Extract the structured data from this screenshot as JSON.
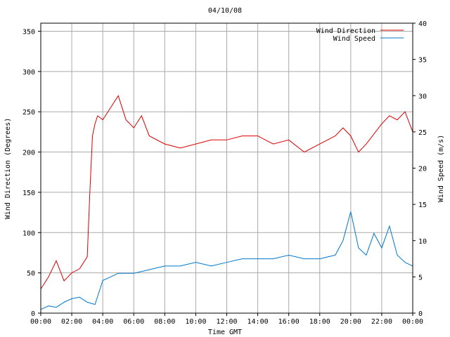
{
  "chart_data": {
    "type": "line",
    "title": "04/10/08",
    "xlabel": "Time GMT",
    "ylabel_left": "Wind Direction (Degrees)",
    "ylabel_right": "Wind Speed (m/s)",
    "x_ticks": [
      "00:00",
      "02:00",
      "04:00",
      "06:00",
      "08:00",
      "10:00",
      "12:00",
      "14:00",
      "16:00",
      "18:00",
      "20:00",
      "22:00",
      "00:00"
    ],
    "y_left_ticks": [
      "0",
      "50",
      "100",
      "150",
      "200",
      "250",
      "300",
      "350"
    ],
    "y_right_ticks": [
      "0",
      "5",
      "10",
      "15",
      "20",
      "25",
      "30",
      "35",
      "40"
    ],
    "ylim_left": [
      0,
      360
    ],
    "ylim_right": [
      0,
      40
    ],
    "xlim_hours": [
      0,
      24
    ],
    "grid": true,
    "legend_position": "top-right",
    "series": [
      {
        "name": "Wind Direction",
        "color": "#dd0000",
        "axis": "left",
        "x": [
          "00:00",
          "00:30",
          "01:00",
          "01:30",
          "02:00",
          "02:30",
          "03:00",
          "03:10",
          "03:20",
          "03:30",
          "03:40",
          "04:00",
          "04:30",
          "05:00",
          "05:30",
          "06:00",
          "06:30",
          "07:00",
          "08:00",
          "09:00",
          "10:00",
          "11:00",
          "12:00",
          "13:00",
          "14:00",
          "15:00",
          "16:00",
          "17:00",
          "18:00",
          "19:00",
          "19:30",
          "20:00",
          "20:30",
          "21:00",
          "22:00",
          "22:30",
          "23:00",
          "23:30",
          "00:00"
        ],
        "values": [
          30,
          45,
          65,
          40,
          50,
          55,
          70,
          150,
          220,
          235,
          245,
          240,
          255,
          270,
          240,
          230,
          245,
          220,
          210,
          205,
          210,
          215,
          215,
          220,
          220,
          210,
          215,
          200,
          210,
          220,
          230,
          220,
          200,
          210,
          235,
          245,
          240,
          250,
          225
        ]
      },
      {
        "name": "Wind Speed",
        "color": "#0077cc",
        "axis": "right",
        "x": [
          "00:00",
          "00:30",
          "01:00",
          "01:30",
          "02:00",
          "02:30",
          "03:00",
          "03:30",
          "04:00",
          "04:30",
          "05:00",
          "06:00",
          "07:00",
          "08:00",
          "09:00",
          "10:00",
          "11:00",
          "12:00",
          "13:00",
          "14:00",
          "15:00",
          "16:00",
          "17:00",
          "18:00",
          "19:00",
          "19:30",
          "20:00",
          "20:30",
          "21:00",
          "21:30",
          "22:00",
          "22:30",
          "23:00",
          "23:30",
          "00:00"
        ],
        "values": [
          0.5,
          1,
          0.8,
          1.5,
          2,
          2.2,
          1.5,
          1.2,
          4.5,
          5,
          5.5,
          5.5,
          6,
          6.5,
          6.5,
          7,
          6.5,
          7,
          7.5,
          7.5,
          7.5,
          8,
          7.5,
          7.5,
          8,
          10,
          14,
          9,
          8,
          11,
          9,
          12,
          8,
          7,
          6.5
        ]
      }
    ]
  }
}
